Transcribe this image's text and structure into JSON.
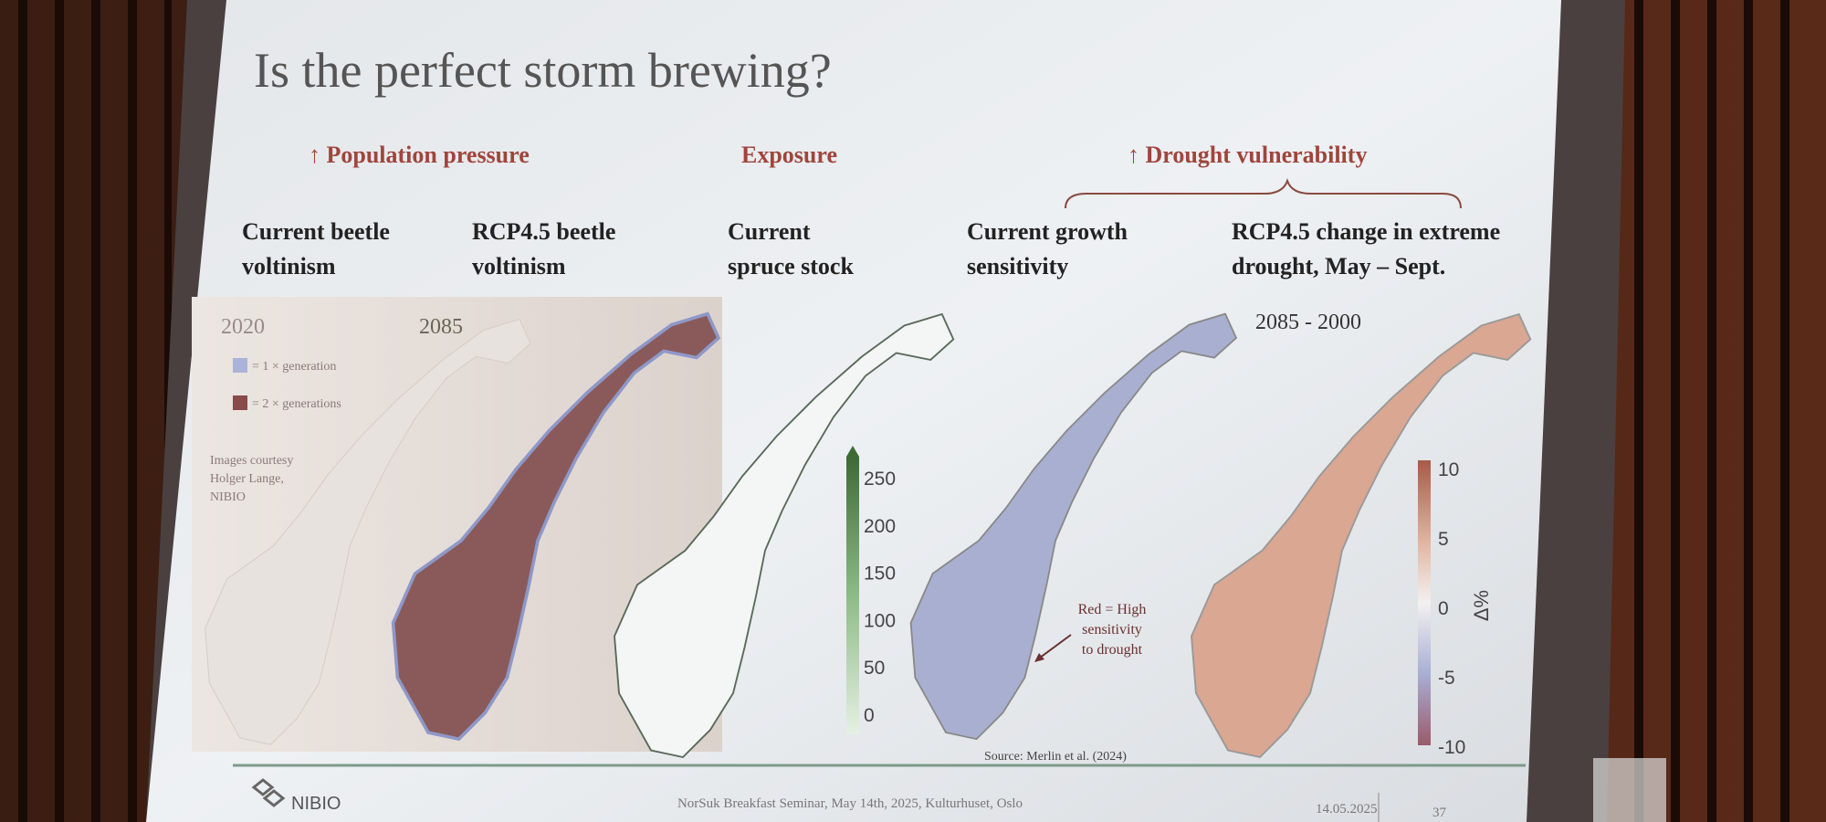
{
  "slide": {
    "title": "Is the perfect storm brewing?",
    "groups": [
      "↑ Population pressure",
      "Exposure",
      "↑ Drought vulnerability"
    ],
    "columns": [
      [
        "Current beetle",
        "voltinism"
      ],
      [
        "RCP4.5 beetle",
        "voltinism"
      ],
      [
        "Current",
        "spruce stock"
      ],
      [
        "Current growth",
        "sensitivity"
      ],
      [
        "RCP4.5 change in extreme",
        "drought, May – Sept."
      ]
    ],
    "panels": {
      "year_left": "2020",
      "year_right": "2085",
      "legend": [
        "= 1 × generation",
        "= 2 × generations"
      ],
      "credit": [
        "Images courtesy",
        "Holger Lange,",
        "NIBIO"
      ],
      "spruce_ticks": [
        "250",
        "200",
        "150",
        "100",
        "50",
        "0"
      ],
      "annotation": [
        "Red = High",
        "sensitivity",
        "to drought"
      ],
      "source": "Source: Merlin et al. (2024)",
      "period": "2085 - 2000",
      "drought_ticks": [
        "10",
        "5",
        "0",
        "-5",
        "-10"
      ],
      "drought_unit": "Δ%"
    }
  },
  "footer": {
    "logo": "NIBIO",
    "event": "NorSuk Breakfast Seminar, May 14th, 2025, Kulturhuset, Oslo",
    "date": "14.05.2025",
    "page": "37"
  }
}
